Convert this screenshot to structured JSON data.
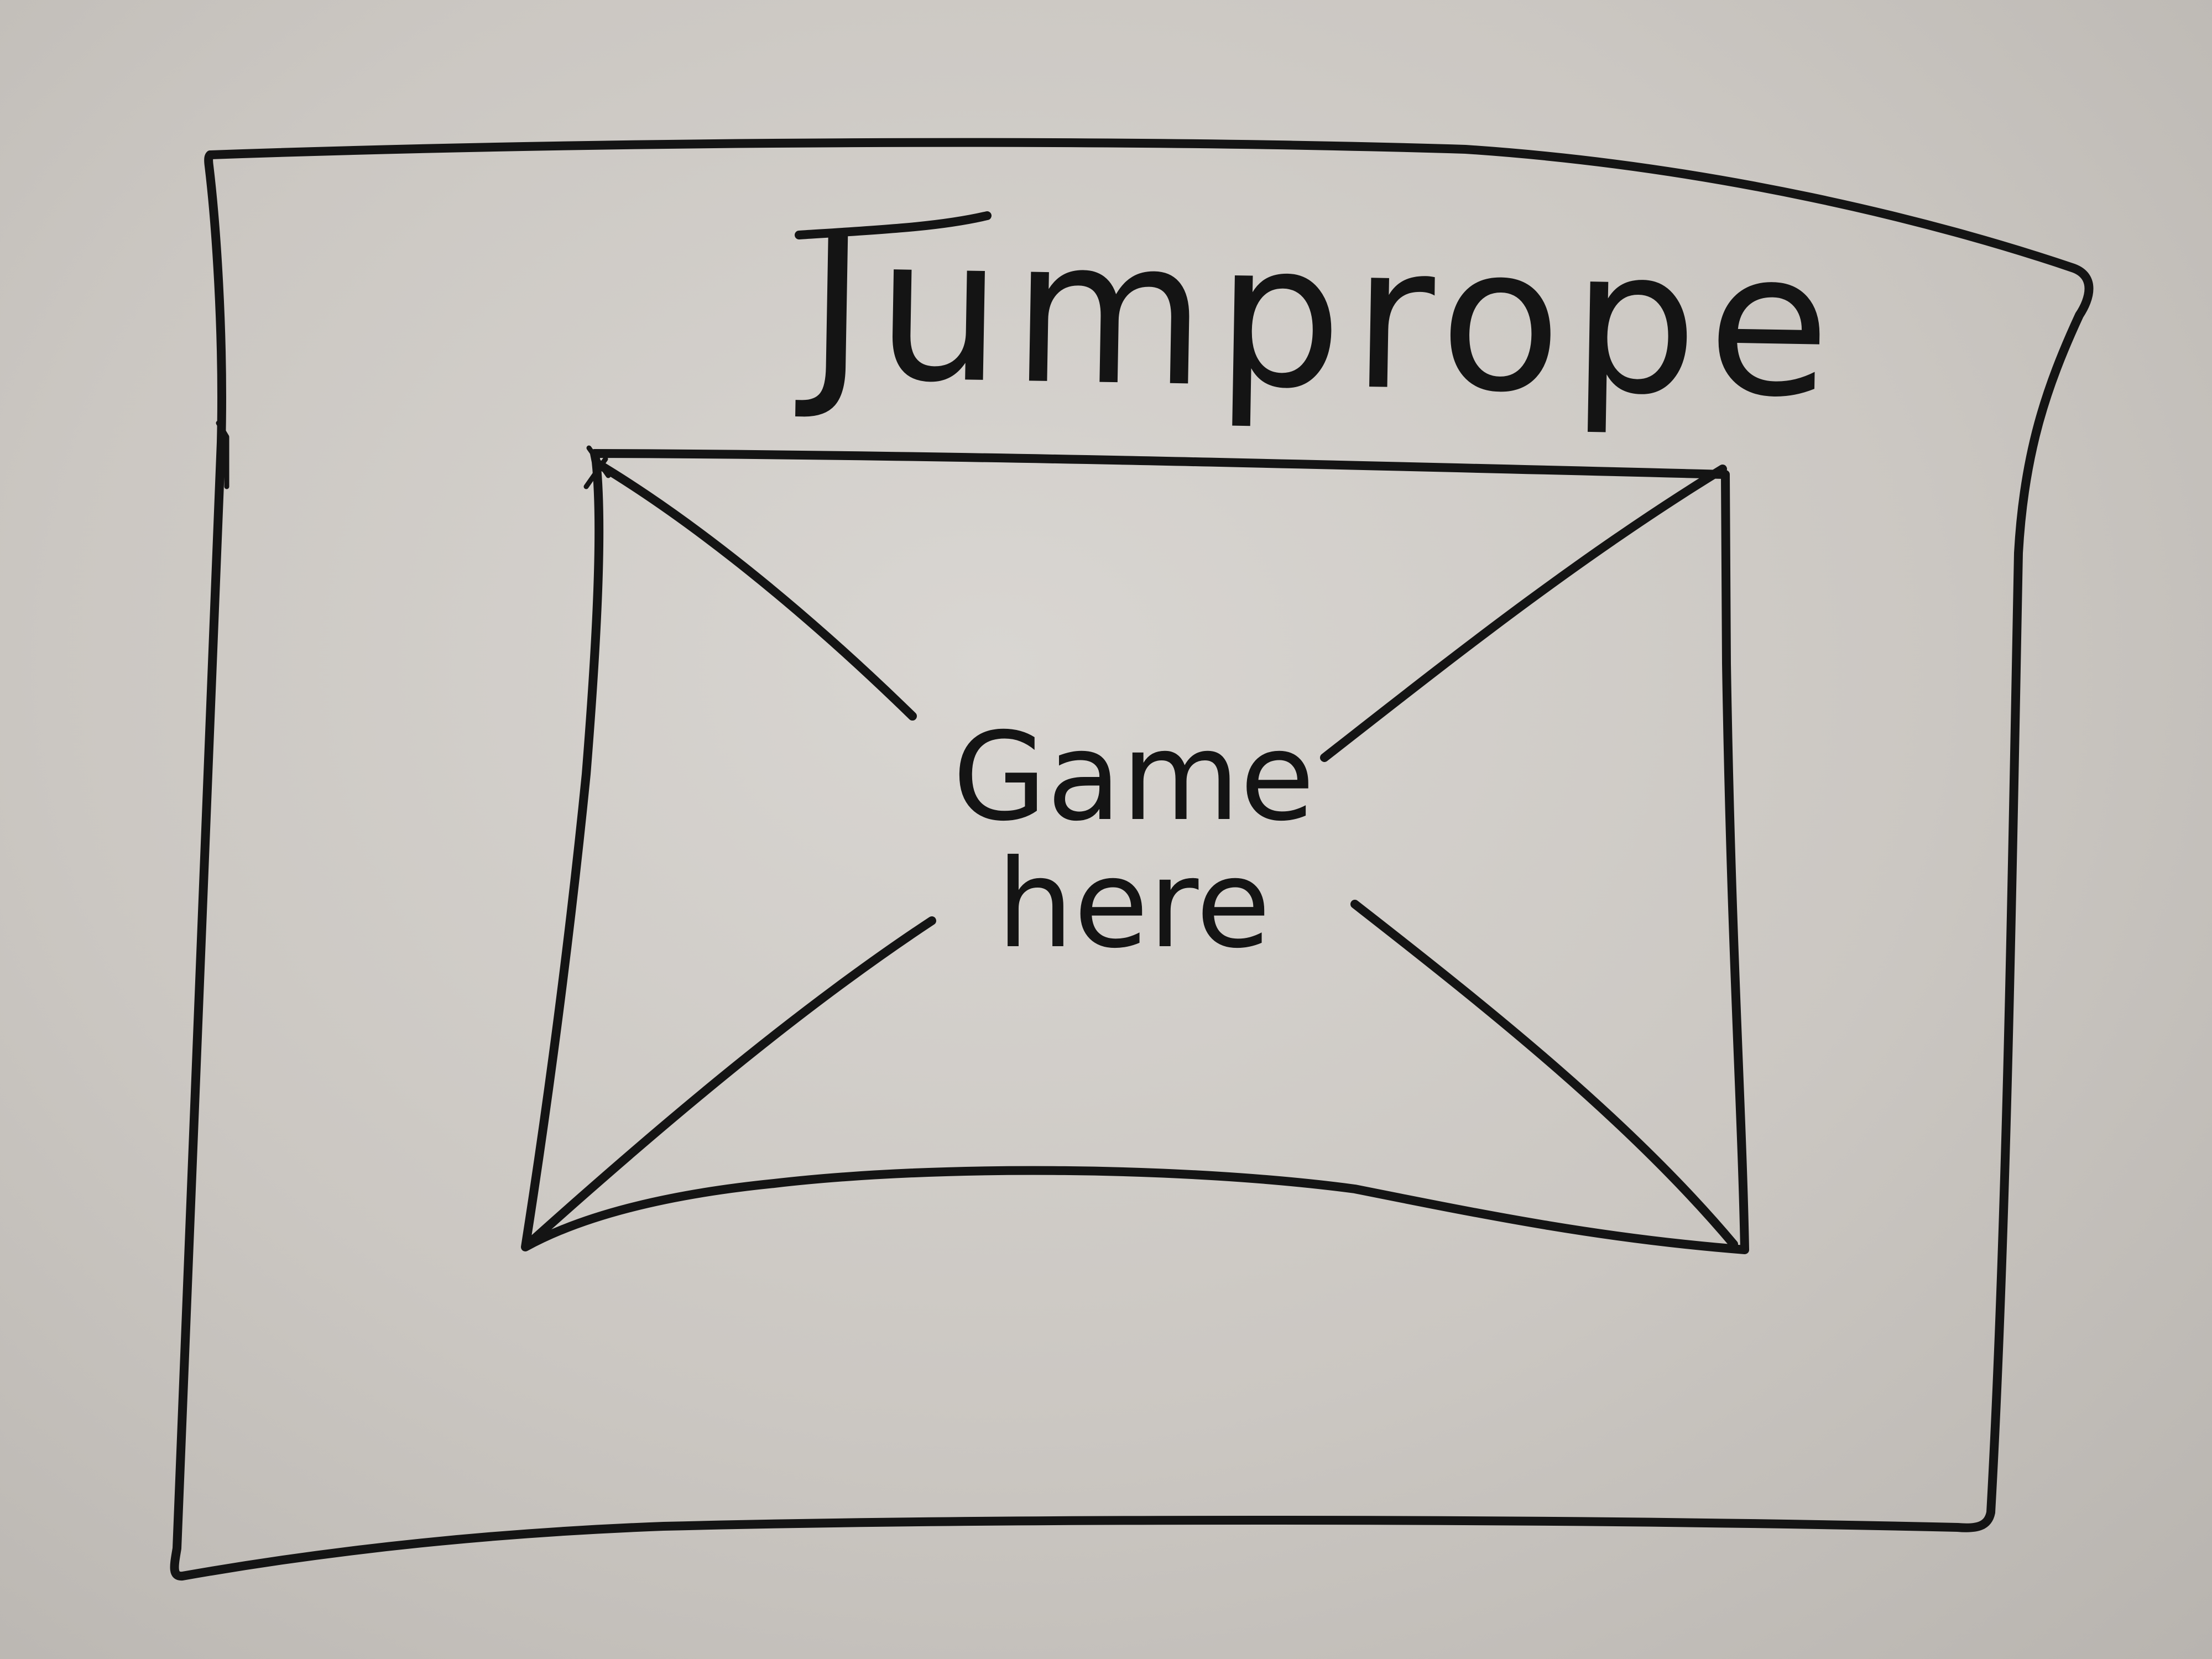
{
  "wireframe": {
    "title": "Jumprope",
    "game_area": {
      "label_line1": "Game",
      "label_line2": "here",
      "placeholder": "crossed-box"
    }
  },
  "colors": {
    "marker": "#141414",
    "whiteboard": "#cfcbc6"
  }
}
